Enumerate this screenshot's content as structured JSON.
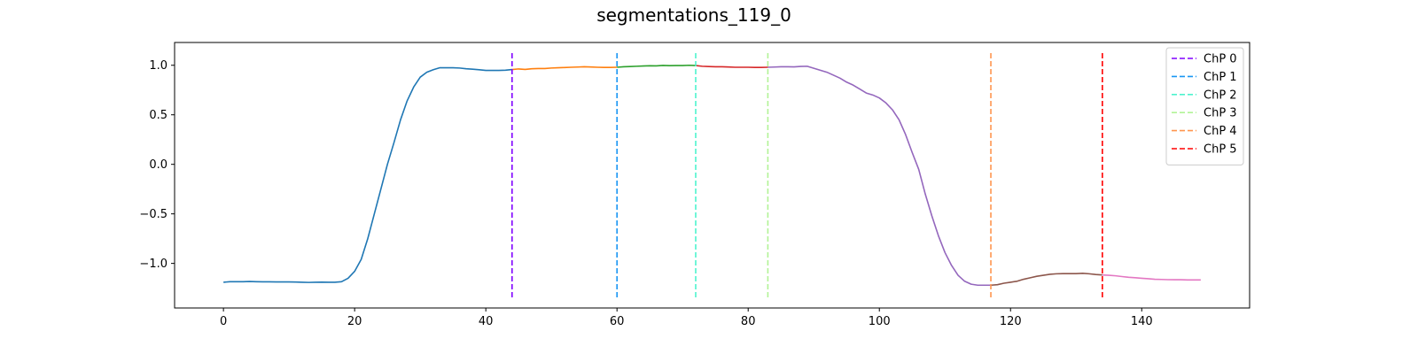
{
  "chart_data": {
    "type": "line",
    "title": "segmentations_119_0",
    "xlabel": "",
    "ylabel": "",
    "xlim": [
      -7.45,
      156.45
    ],
    "ylim": [
      -1.45,
      1.23
    ],
    "x_ticks": [
      0,
      20,
      40,
      60,
      80,
      100,
      120,
      140
    ],
    "y_ticks": [
      -1.0,
      -0.5,
      0.0,
      0.5,
      1.0
    ],
    "x_tick_labels": [
      "0",
      "20",
      "40",
      "60",
      "80",
      "100",
      "120",
      "140"
    ],
    "y_tick_labels": [
      "−1.0",
      "−0.5",
      "0.0",
      "0.5",
      "1.0"
    ],
    "grid": false,
    "legend_position": "top-right",
    "signal": [
      -1.19,
      -1.185,
      -1.185,
      -1.185,
      -1.183,
      -1.185,
      -1.186,
      -1.186,
      -1.187,
      -1.187,
      -1.187,
      -1.188,
      -1.19,
      -1.192,
      -1.19,
      -1.189,
      -1.19,
      -1.19,
      -1.185,
      -1.15,
      -1.08,
      -0.96,
      -0.75,
      -0.5,
      -0.25,
      0.0,
      0.22,
      0.45,
      0.64,
      0.78,
      0.88,
      0.93,
      0.955,
      0.975,
      0.975,
      0.975,
      0.972,
      0.965,
      0.96,
      0.955,
      0.948,
      0.948,
      0.948,
      0.95,
      0.957,
      0.963,
      0.958,
      0.965,
      0.967,
      0.967,
      0.972,
      0.975,
      0.977,
      0.98,
      0.982,
      0.985,
      0.983,
      0.98,
      0.978,
      0.978,
      0.98,
      0.985,
      0.987,
      0.99,
      0.993,
      0.995,
      0.994,
      0.998,
      0.996,
      0.997,
      0.997,
      1.0,
      0.997,
      0.99,
      0.987,
      0.985,
      0.985,
      0.983,
      0.98,
      0.98,
      0.98,
      0.978,
      0.978,
      0.98,
      0.982,
      0.985,
      0.985,
      0.984,
      0.988,
      0.99,
      0.97,
      0.95,
      0.93,
      0.9,
      0.87,
      0.83,
      0.8,
      0.76,
      0.72,
      0.7,
      0.67,
      0.62,
      0.55,
      0.45,
      0.3,
      0.12,
      -0.05,
      -0.3,
      -0.52,
      -0.72,
      -0.89,
      -1.02,
      -1.12,
      -1.18,
      -1.21,
      -1.22,
      -1.22,
      -1.22,
      -1.215,
      -1.2,
      -1.19,
      -1.18,
      -1.16,
      -1.145,
      -1.13,
      -1.12,
      -1.11,
      -1.105,
      -1.103,
      -1.103,
      -1.103,
      -1.1,
      -1.105,
      -1.112,
      -1.117,
      -1.12,
      -1.125,
      -1.133,
      -1.14,
      -1.145,
      -1.15,
      -1.155,
      -1.16,
      -1.162,
      -1.164,
      -1.165,
      -1.165,
      -1.167,
      -1.167,
      -1.167
    ],
    "segments": [
      {
        "start": 0,
        "end": 44,
        "color": "#1f77b4"
      },
      {
        "start": 44,
        "end": 60,
        "color": "#ff7f0e"
      },
      {
        "start": 60,
        "end": 72,
        "color": "#2ca02c"
      },
      {
        "start": 72,
        "end": 83,
        "color": "#d62728"
      },
      {
        "start": 83,
        "end": 117,
        "color": "#9467bd"
      },
      {
        "start": 117,
        "end": 134,
        "color": "#8c564b"
      },
      {
        "start": 134,
        "end": 149,
        "color": "#e377c2"
      }
    ],
    "change_points": [
      {
        "name": "ChP 0",
        "x": 44,
        "color": "#8000ff"
      },
      {
        "name": "ChP 1",
        "x": 60,
        "color": "#1996f3"
      },
      {
        "name": "ChP 2",
        "x": 72,
        "color": "#4df3ce"
      },
      {
        "name": "ChP 3",
        "x": 83,
        "color": "#b2f396"
      },
      {
        "name": "ChP 4",
        "x": 117,
        "color": "#ff964f"
      },
      {
        "name": "ChP 5",
        "x": 134,
        "color": "#ff0000"
      }
    ]
  }
}
